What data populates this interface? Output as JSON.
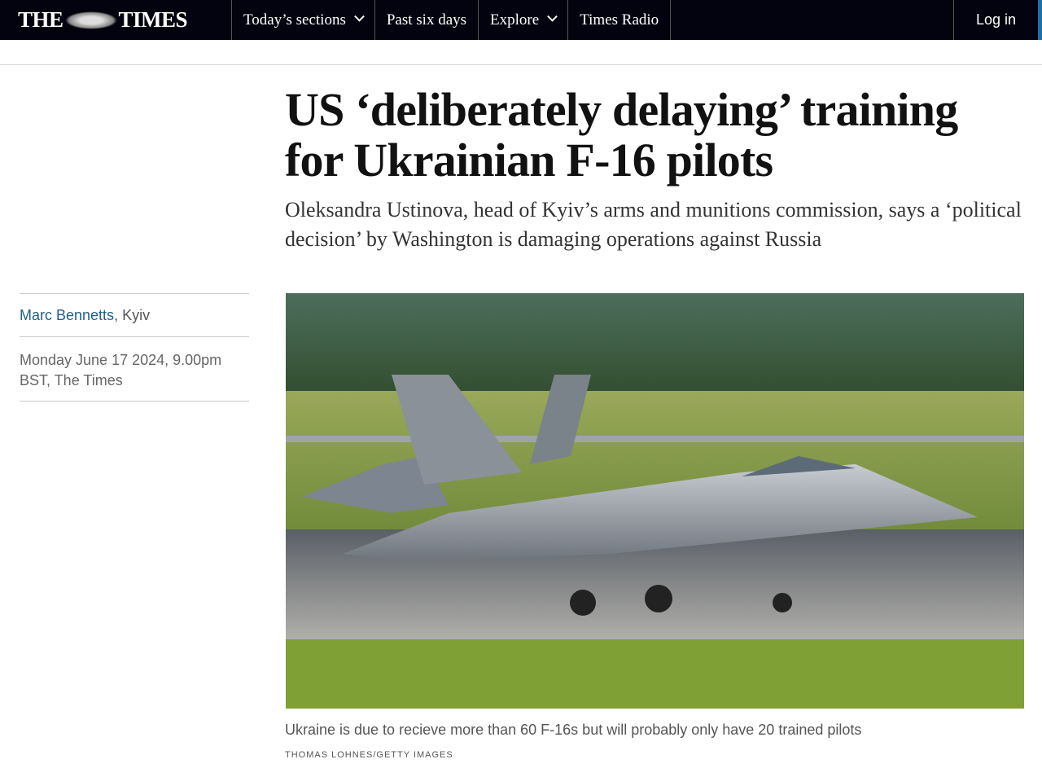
{
  "nav": {
    "logo": "THE TIMES",
    "items": [
      {
        "label": "Today’s sections",
        "dropdown": true
      },
      {
        "label": "Past six days",
        "dropdown": false
      },
      {
        "label": "Explore",
        "dropdown": true
      },
      {
        "label": "Times Radio",
        "dropdown": false
      }
    ],
    "login": "Log in"
  },
  "article": {
    "headline": "US ‘deliberately delaying’ training for Ukrainian F-16 pilots",
    "standfirst": "Oleksandra Ustinova, head of Kyiv’s arms and munitions commission, says a ‘political decision’ by Washington is damaging operations against Russia",
    "author": "Marc Bennetts",
    "location": ", Kyiv",
    "date": "Monday June 17 2024, 9.00pm BST, The Times",
    "image_caption": "Ukraine is due to recieve more than 60 F-16s but will probably only have 20 trained pilots",
    "image_credit": "Thomas Lohnes/Getty Images"
  },
  "colors": {
    "nav_bg": "#03030f",
    "link": "#1f5f8b",
    "accent": "#1d6fa5"
  }
}
